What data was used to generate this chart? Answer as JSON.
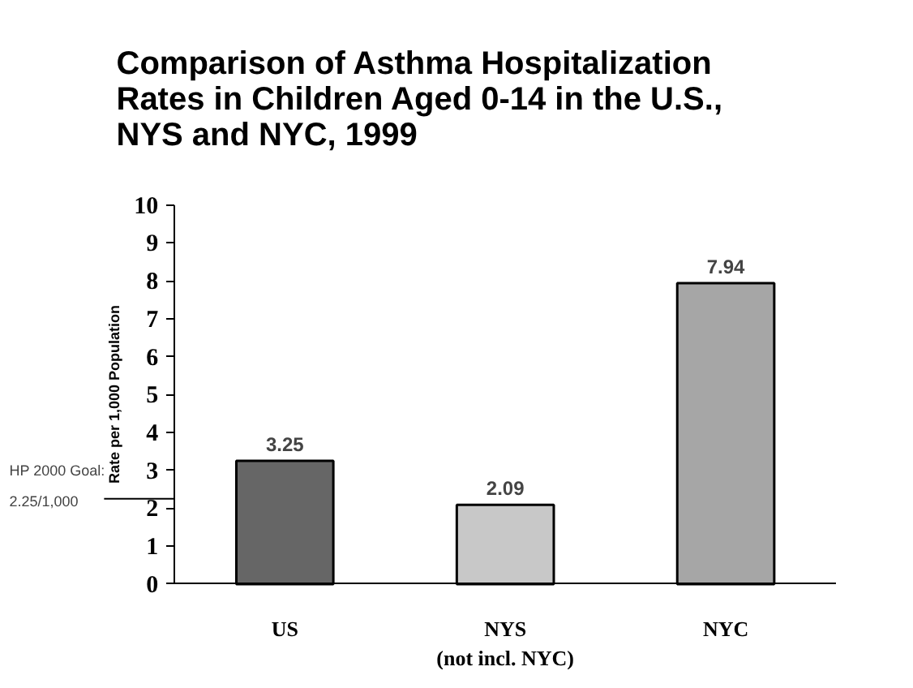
{
  "chart_data": {
    "type": "bar",
    "title": "Comparison of Asthma Hospitalization\nRates in Children Aged 0-14 in the U.S.,\nNYS and NYC, 1999",
    "ylabel": "Rate per 1,000 Population",
    "categories": [
      "US",
      "NYS\n(not incl. NYC)",
      "NYC"
    ],
    "values": [
      3.25,
      2.09,
      7.94
    ],
    "colors": [
      "#666666",
      "#c8c8c8",
      "#a6a6a6"
    ],
    "ylim": [
      0,
      10
    ],
    "yticks": [
      0,
      1,
      2,
      3,
      4,
      5,
      6,
      7,
      8,
      9,
      10
    ],
    "grid": false,
    "data_labels": true,
    "ref_lines": [
      {
        "axis": "y",
        "value": 2.25,
        "label": "HP 2000 Goal:\n2.25/1,000"
      }
    ]
  }
}
